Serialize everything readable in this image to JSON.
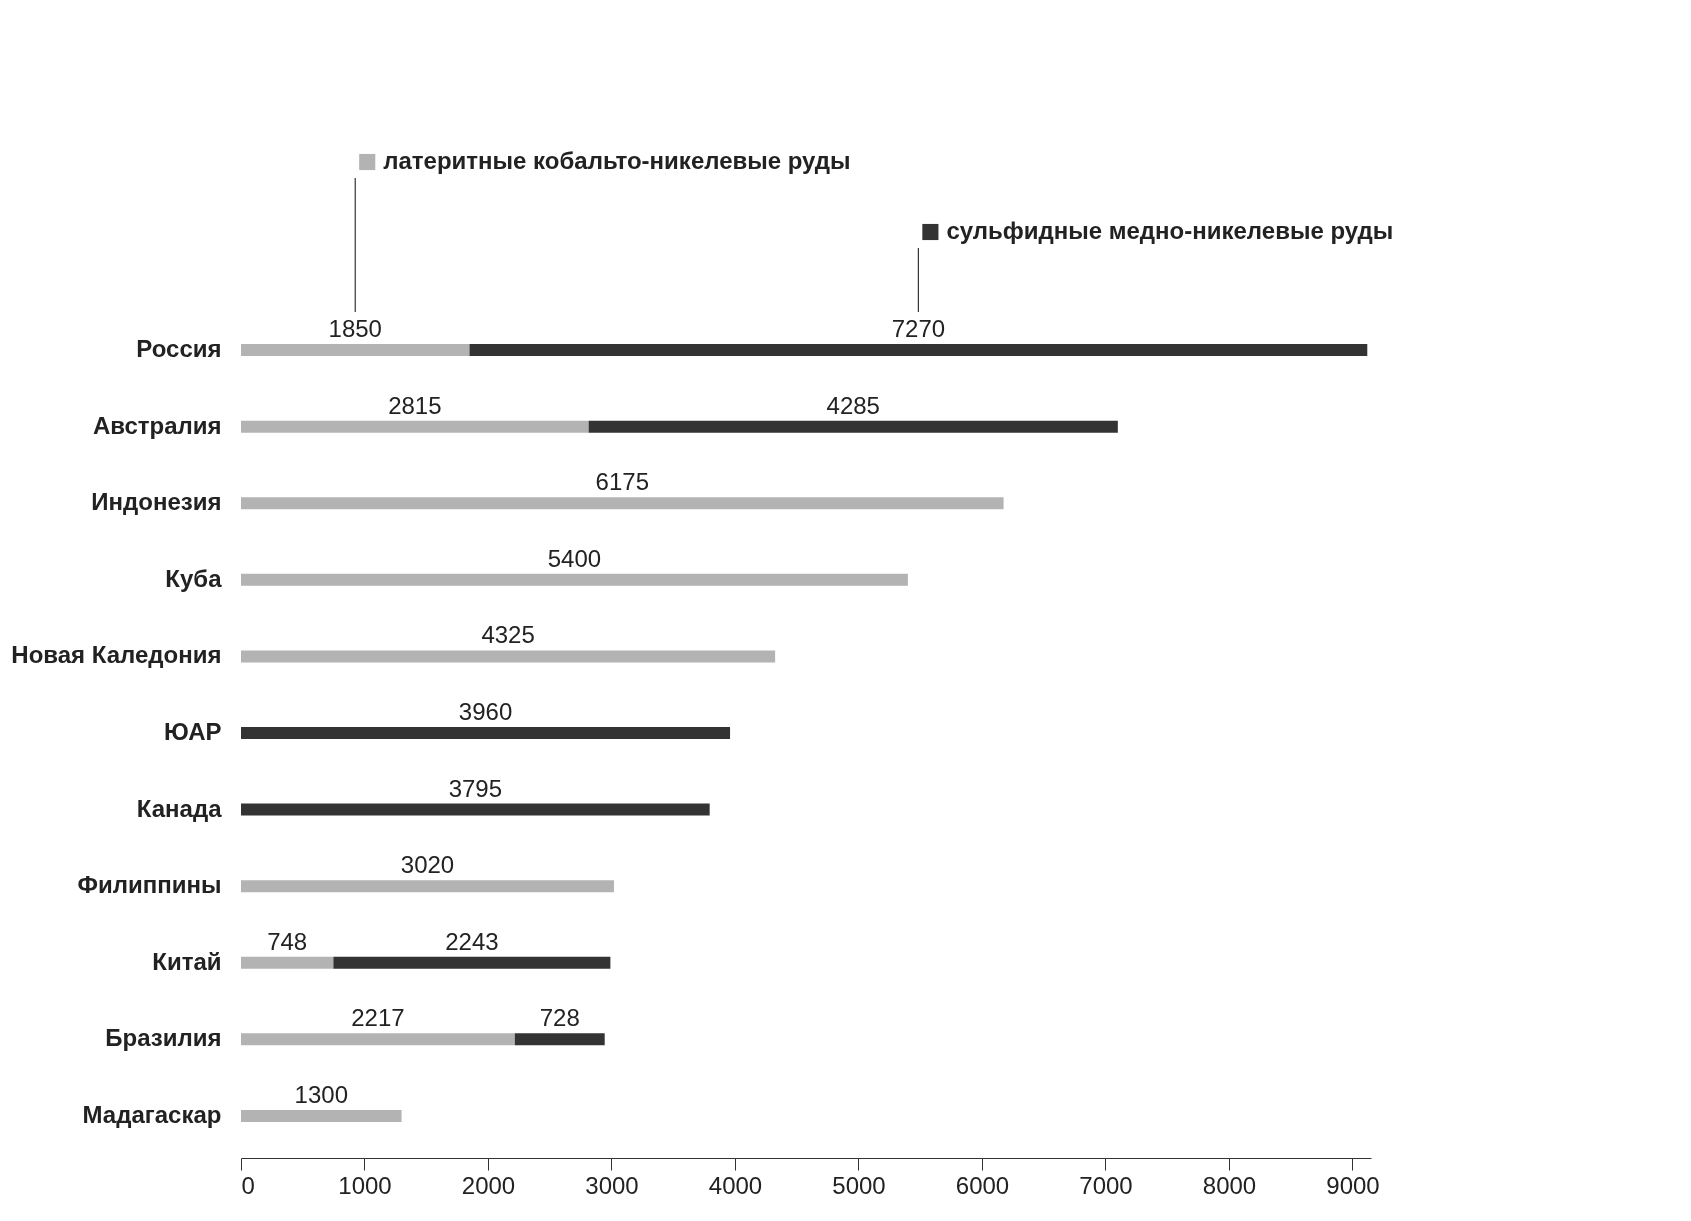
{
  "chart_data": {
    "type": "bar",
    "orientation": "horizontal",
    "stacked": true,
    "data_labels": true,
    "legend": "top",
    "grid": false,
    "categories": [
      "Россия",
      "Австралия",
      "Индонезия",
      "Куба",
      "Новая Каледония",
      "ЮАР",
      "Канада",
      "Филиппины",
      "Китай",
      "Бразилия",
      "Мадагаскар"
    ],
    "series": [
      {
        "name": "латеритные кобальто-никелевые руды",
        "color": "#b3b3b3",
        "values": [
          1850,
          2815,
          6175,
          5400,
          4325,
          null,
          null,
          3020,
          748,
          2217,
          1300
        ]
      },
      {
        "name": "сульфидные медно-никелевые руды",
        "color": "#333333",
        "values": [
          7270,
          4285,
          null,
          null,
          null,
          3960,
          3795,
          null,
          2243,
          728,
          null
        ]
      }
    ],
    "xlim": [
      0,
      9150
    ],
    "xticks": [
      0,
      1000,
      2000,
      3000,
      4000,
      5000,
      6000,
      7000,
      8000,
      9000
    ]
  }
}
